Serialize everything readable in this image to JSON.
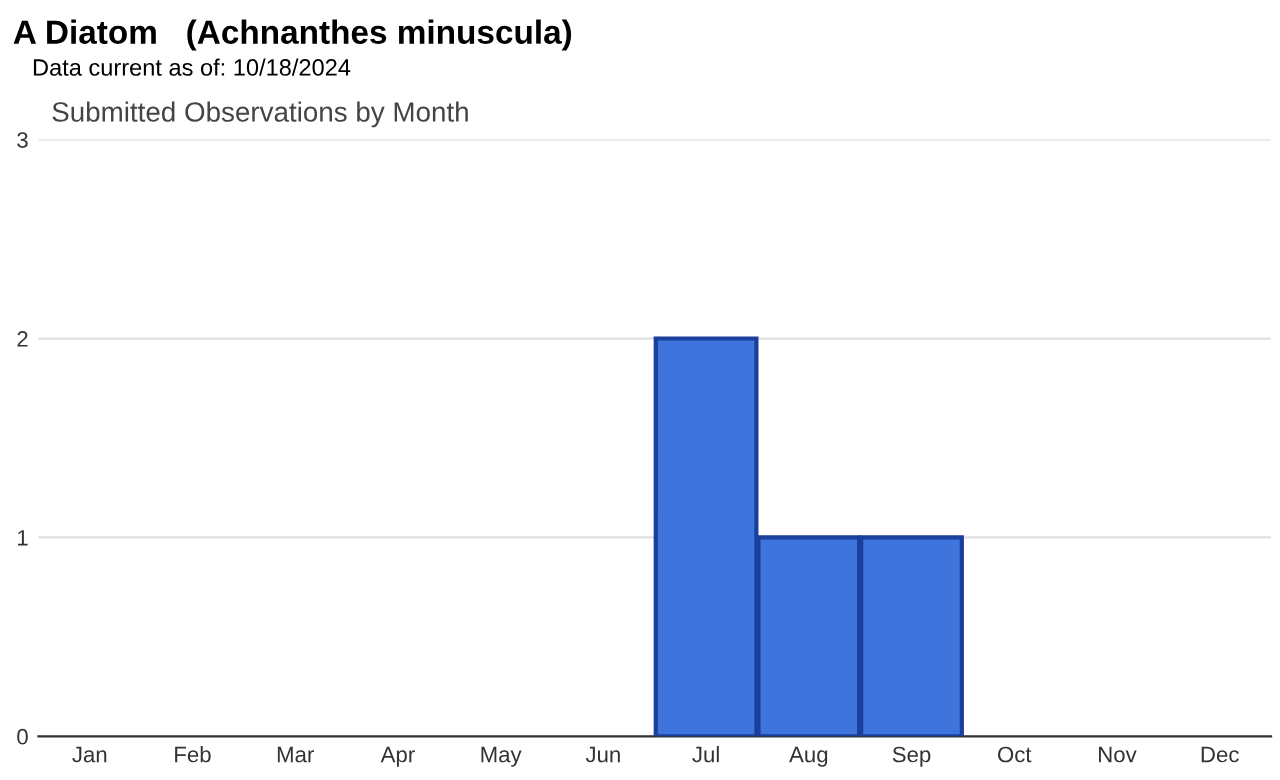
{
  "chart_data": {
    "type": "bar",
    "title": "A Diatom   (Achnanthes minuscula)",
    "subtitle": "Data current as of: 10/18/2024",
    "annotations": [
      "Submitted Observations by Month"
    ],
    "categories": [
      "Jan",
      "Feb",
      "Mar",
      "Apr",
      "May",
      "Jun",
      "Jul",
      "Aug",
      "Sep",
      "Oct",
      "Nov",
      "Dec"
    ],
    "values": [
      0,
      0,
      0,
      0,
      0,
      0,
      2,
      1,
      1,
      0,
      0,
      0
    ],
    "color": "#3f74dc",
    "ylim": [
      0,
      3
    ],
    "yticks": [
      0,
      1,
      2,
      3
    ],
    "grid": "y",
    "legend": false
  }
}
